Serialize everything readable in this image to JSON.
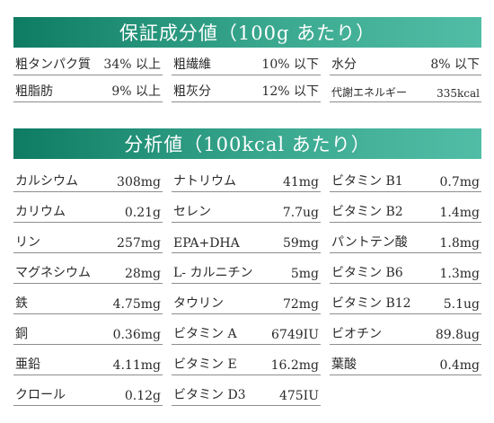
{
  "guaranteed": {
    "title": "保証成分値（100g あたり）",
    "rows": [
      [
        {
          "name": "粗タンパク質",
          "value": "34% 以上"
        },
        {
          "name": "粗繊維",
          "value": "10% 以下"
        },
        {
          "name": "水分",
          "value": "8% 以下"
        }
      ],
      [
        {
          "name": "粗脂肪",
          "value": "9% 以上"
        },
        {
          "name": "粗灰分",
          "value": "12% 以下"
        },
        {
          "name": "代謝エネルギー",
          "value": "335kcal"
        }
      ]
    ]
  },
  "analysis": {
    "title": "分析値（100kcal あたり）",
    "rows": [
      [
        {
          "name": "カルシウム",
          "value": "308mg"
        },
        {
          "name": "ナトリウム",
          "value": "41mg"
        },
        {
          "name": "ビタミン B1",
          "value": "0.7mg"
        }
      ],
      [
        {
          "name": "カリウム",
          "value": "0.21g"
        },
        {
          "name": "セレン",
          "value": "7.7ug"
        },
        {
          "name": "ビタミン B2",
          "value": "1.4mg"
        }
      ],
      [
        {
          "name": "リン",
          "value": "257mg"
        },
        {
          "name": "EPA+DHA",
          "value": "59mg"
        },
        {
          "name": "パントテン酸",
          "value": "1.8mg"
        }
      ],
      [
        {
          "name": "マグネシウム",
          "value": "28mg"
        },
        {
          "name": "L- カルニチン",
          "value": "5mg"
        },
        {
          "name": "ビタミン B6",
          "value": "1.3mg"
        }
      ],
      [
        {
          "name": "鉄",
          "value": "4.75mg"
        },
        {
          "name": "タウリン",
          "value": "72mg"
        },
        {
          "name": "ビタミン B12",
          "value": "5.1ug"
        }
      ],
      [
        {
          "name": "銅",
          "value": "0.36mg"
        },
        {
          "name": "ビタミン A",
          "value": "6749IU"
        },
        {
          "name": "ビオチン",
          "value": "89.8ug"
        }
      ],
      [
        {
          "name": "亜鉛",
          "value": "4.11mg"
        },
        {
          "name": "ビタミン E",
          "value": "16.2mg"
        },
        {
          "name": "葉酸",
          "value": "0.4mg"
        }
      ],
      [
        {
          "name": "クロール",
          "value": "0.12g"
        },
        {
          "name": "ビタミン D3",
          "value": "475IU"
        }
      ]
    ]
  }
}
